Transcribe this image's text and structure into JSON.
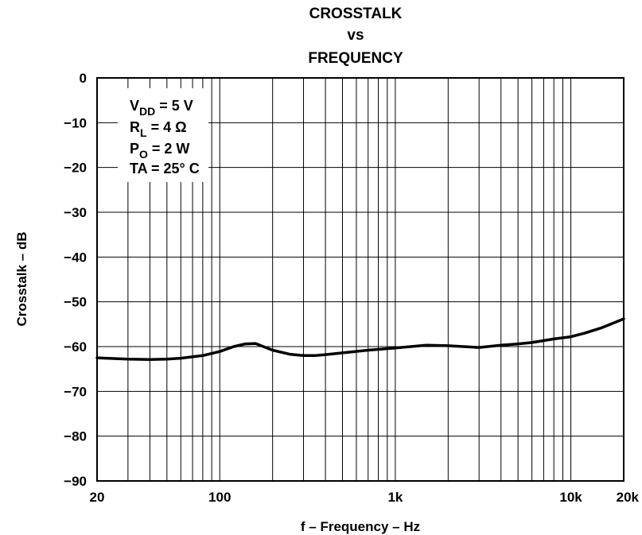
{
  "chart_data": {
    "type": "line",
    "title_lines": [
      "CROSSTALK",
      "vs",
      "FREQUENCY"
    ],
    "xlabel": "f – Frequency – Hz",
    "ylabel": "Crosstalk – dB",
    "xscale": "log",
    "xlim": [
      20,
      20000
    ],
    "ylim": [
      -90,
      0
    ],
    "grid": true,
    "x_tick_labels": [
      {
        "value": 20,
        "label": "20"
      },
      {
        "value": 100,
        "label": "100"
      },
      {
        "value": 1000,
        "label": "1k"
      },
      {
        "value": 10000,
        "label": "10k"
      },
      {
        "value": 20000,
        "label": "20k"
      }
    ],
    "y_tick_labels": [
      {
        "value": 0,
        "label": "0"
      },
      {
        "value": -10,
        "label": "−10"
      },
      {
        "value": -20,
        "label": "−20"
      },
      {
        "value": -30,
        "label": "−30"
      },
      {
        "value": -40,
        "label": "−40"
      },
      {
        "value": -50,
        "label": "−50"
      },
      {
        "value": -60,
        "label": "−60"
      },
      {
        "value": -70,
        "label": "−70"
      },
      {
        "value": -80,
        "label": "−80"
      },
      {
        "value": -90,
        "label": "−90"
      }
    ],
    "conditions": [
      {
        "main": "V",
        "sub": "DD",
        "rest": " = 5 V"
      },
      {
        "main": "R",
        "sub": "L",
        "rest": " = 4 Ω"
      },
      {
        "main": "P",
        "sub": "O",
        "rest": " = 2 W"
      },
      {
        "main": "TA = 25° C",
        "sub": "",
        "rest": ""
      }
    ],
    "series": [
      {
        "x": [
          20,
          30,
          40,
          50,
          60,
          80,
          100,
          120,
          140,
          160,
          180,
          200,
          250,
          300,
          350,
          400,
          500,
          700,
          1000,
          1500,
          2000,
          3000,
          4000,
          5000,
          6000,
          8000,
          10000,
          12000,
          15000,
          20000
        ],
        "y": [
          -62.5,
          -62.8,
          -62.9,
          -62.8,
          -62.6,
          -62.0,
          -61.1,
          -60.0,
          -59.4,
          -59.3,
          -60.1,
          -60.8,
          -61.7,
          -62.0,
          -62.0,
          -61.8,
          -61.4,
          -60.8,
          -60.3,
          -59.7,
          -59.8,
          -60.2,
          -59.7,
          -59.4,
          -59.1,
          -58.3,
          -57.8,
          -57.0,
          -55.8,
          -53.8
        ]
      }
    ]
  }
}
